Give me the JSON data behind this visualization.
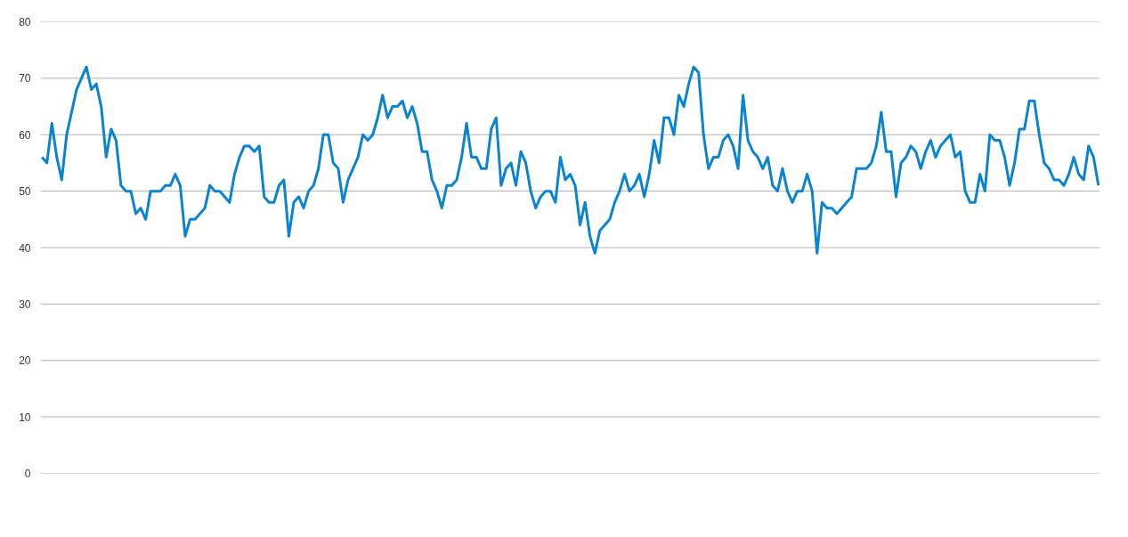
{
  "chart_data": {
    "type": "line",
    "categories": [
      null,
      null,
      null,
      null,
      null,
      null,
      null,
      null,
      null,
      null,
      null,
      null,
      null,
      null,
      null,
      null,
      null,
      null,
      null,
      null,
      null,
      null,
      null,
      null,
      null,
      null,
      null,
      null,
      null,
      null,
      null,
      null,
      null,
      null,
      null,
      null,
      null,
      null,
      null,
      null,
      null,
      null,
      null,
      null,
      null,
      null,
      null,
      null,
      null,
      null,
      null,
      null,
      null,
      null,
      null,
      null,
      null,
      null,
      null,
      null,
      null,
      null,
      null,
      null,
      null,
      null,
      null,
      null,
      null,
      null,
      null,
      null,
      null,
      null,
      null,
      null,
      null,
      null,
      null,
      null,
      null,
      null,
      null,
      null,
      null,
      null,
      null,
      null,
      null,
      null,
      null,
      null,
      null,
      null,
      null,
      null,
      null,
      null,
      null,
      null,
      null,
      null,
      null,
      null,
      null,
      null,
      null,
      null,
      null,
      null,
      null,
      null,
      null,
      null,
      null,
      null,
      null,
      null,
      null,
      null,
      null,
      null,
      null,
      null,
      null,
      null,
      null,
      null,
      null,
      null,
      null,
      null,
      null,
      null,
      null,
      null,
      null,
      null,
      null,
      null,
      null,
      null,
      null,
      null,
      null,
      null,
      null,
      null,
      null,
      null,
      null,
      null,
      null,
      null,
      null,
      null,
      null,
      null,
      null,
      null,
      null,
      null,
      null,
      null,
      null,
      null,
      null,
      null,
      null,
      null,
      null,
      null,
      null,
      null,
      null,
      null,
      null,
      null,
      null,
      null,
      null,
      null,
      null,
      null,
      null,
      null,
      null,
      null,
      null,
      null,
      null,
      null,
      null,
      null,
      null,
      null,
      null,
      null,
      null,
      null,
      null,
      null,
      null,
      null,
      null,
      null,
      null,
      null,
      null,
      null,
      null,
      null,
      null,
      null,
      null
    ],
    "series": [
      {
        "color": "#0a84d0",
        "values": [
          56,
          55,
          62,
          56,
          52,
          60,
          64,
          68,
          70,
          72,
          68,
          69,
          65,
          56,
          61,
          59,
          51,
          50,
          50,
          46,
          47,
          45,
          50,
          50,
          50,
          51,
          51,
          53,
          51,
          42,
          45,
          45,
          46,
          47,
          51,
          50,
          50,
          49,
          48,
          53,
          56,
          58,
          58,
          57,
          58,
          49,
          48,
          48,
          51,
          52,
          42,
          48,
          49,
          47,
          50,
          51,
          54,
          60,
          60,
          55,
          54,
          48,
          52,
          54,
          56,
          60,
          59,
          60,
          63,
          67,
          63,
          65,
          65,
          66,
          63,
          65,
          62,
          57,
          57,
          52,
          50,
          47,
          51,
          51,
          52,
          56,
          62,
          56,
          56,
          54,
          54,
          61,
          63,
          51,
          54,
          55,
          51,
          57,
          55,
          50,
          47,
          49,
          50,
          50,
          48,
          56,
          52,
          53,
          51,
          44,
          48,
          42,
          39,
          43,
          44,
          45,
          48,
          50,
          53,
          50,
          51,
          53,
          49,
          53,
          59,
          55,
          63,
          63,
          60,
          67,
          65,
          69,
          72,
          71,
          60,
          54,
          56,
          56,
          59,
          60,
          58,
          54,
          67,
          59,
          57,
          56,
          54,
          56,
          51,
          50,
          54,
          50,
          48,
          50,
          50,
          53,
          50,
          39,
          48,
          47,
          47,
          46,
          47,
          48,
          49,
          54,
          54,
          54,
          55,
          58,
          64,
          57,
          57,
          49,
          55,
          56,
          58,
          57,
          54,
          57,
          59,
          56,
          58,
          59,
          60,
          56,
          57,
          50,
          48,
          48,
          53,
          50,
          60,
          59,
          59,
          56,
          51,
          55,
          61,
          61,
          66,
          66,
          60,
          55,
          54,
          52,
          52,
          51,
          53,
          56,
          53,
          52,
          58,
          56,
          51
        ]
      }
    ],
    "ylim": [
      0,
      80
    ],
    "yticks": [
      0,
      10,
      20,
      30,
      40,
      50,
      60,
      70,
      80
    ],
    "grid": "y",
    "tick_labels": "y"
  }
}
